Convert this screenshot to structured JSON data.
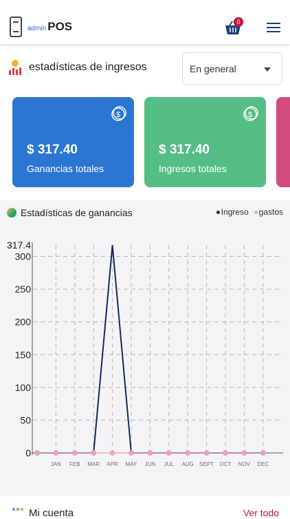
{
  "header": {
    "logo_small": "admin",
    "logo_big": "POS",
    "cart_count": "0"
  },
  "stats": {
    "title": "estadísticas de ingresos",
    "filter_value": "En general"
  },
  "cards": [
    {
      "amount": "$ 317.40",
      "label": "Ganancias totales",
      "color": "#2b76d3"
    },
    {
      "amount": "$ 317.40",
      "label": "Ingresos totales",
      "color": "#55be85"
    }
  ],
  "chart_section": {
    "title": "Estadísticas de ganancias",
    "legend": [
      {
        "name": "Ingreso",
        "color": "#14285e"
      },
      {
        "name": "gastos",
        "color": "#f0a7c0"
      }
    ]
  },
  "chart_data": {
    "type": "line",
    "categories": [
      "",
      "JAN",
      "FEB",
      "MAR",
      "APR",
      "MAY",
      "JUN",
      "JUL",
      "AUG",
      "SEPT",
      "OCT",
      "NOV",
      "DEC"
    ],
    "series": [
      {
        "name": "Ingreso",
        "values": [
          0,
          0,
          0,
          0,
          317.4,
          0,
          0,
          0,
          0,
          0,
          0,
          0,
          0
        ]
      },
      {
        "name": "gastos",
        "values": [
          0,
          0,
          0,
          0,
          0,
          0,
          0,
          0,
          0,
          0,
          0,
          0,
          0
        ]
      }
    ],
    "yticks": [
      0,
      50,
      100,
      150,
      200,
      250,
      300,
      317.4
    ],
    "ylim": [
      0,
      317.4
    ],
    "grid": true,
    "legend_position": "top-right"
  },
  "account": {
    "title": "Mi cuenta",
    "link": "Ver todo"
  }
}
